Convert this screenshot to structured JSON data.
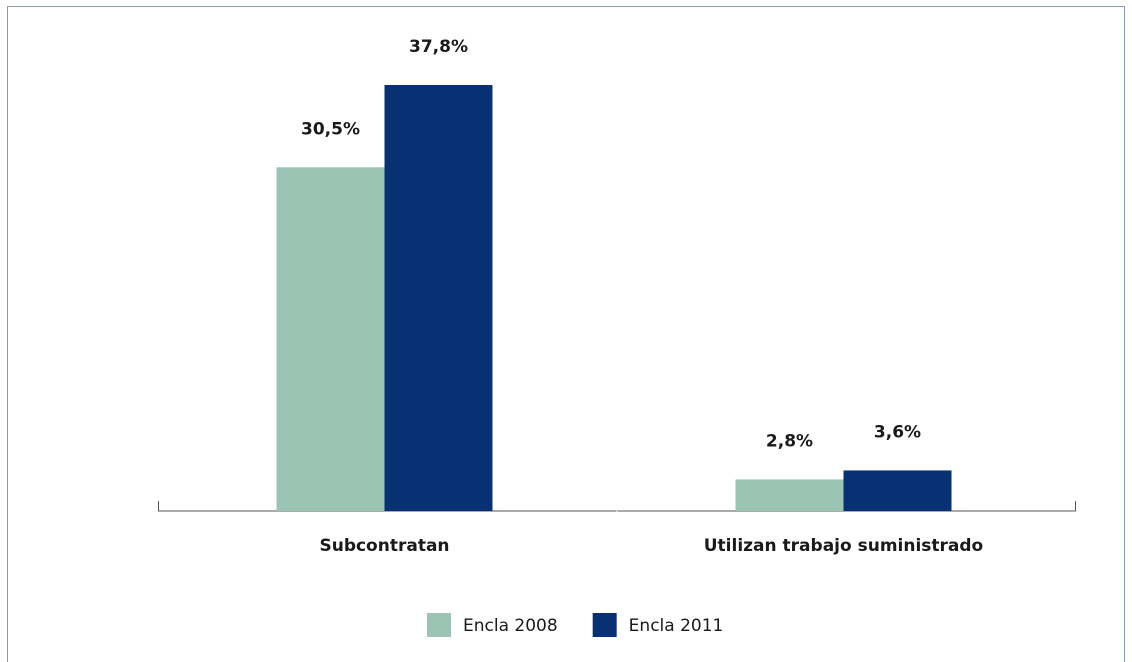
{
  "chart_data": {
    "type": "bar",
    "categories": [
      "Subcontratan",
      "Utilizan trabajo suministrado"
    ],
    "series": [
      {
        "name": "Encla 2008",
        "color": "#9cc4b5",
        "values": [
          30.5,
          2.8
        ],
        "value_labels": [
          "30,5%",
          "2,8%"
        ]
      },
      {
        "name": "Encla 2011",
        "color": "#083174",
        "values": [
          37.8,
          3.6
        ],
        "value_labels": [
          "37,8%",
          "3,6%"
        ]
      }
    ],
    "legend": "bottom"
  }
}
